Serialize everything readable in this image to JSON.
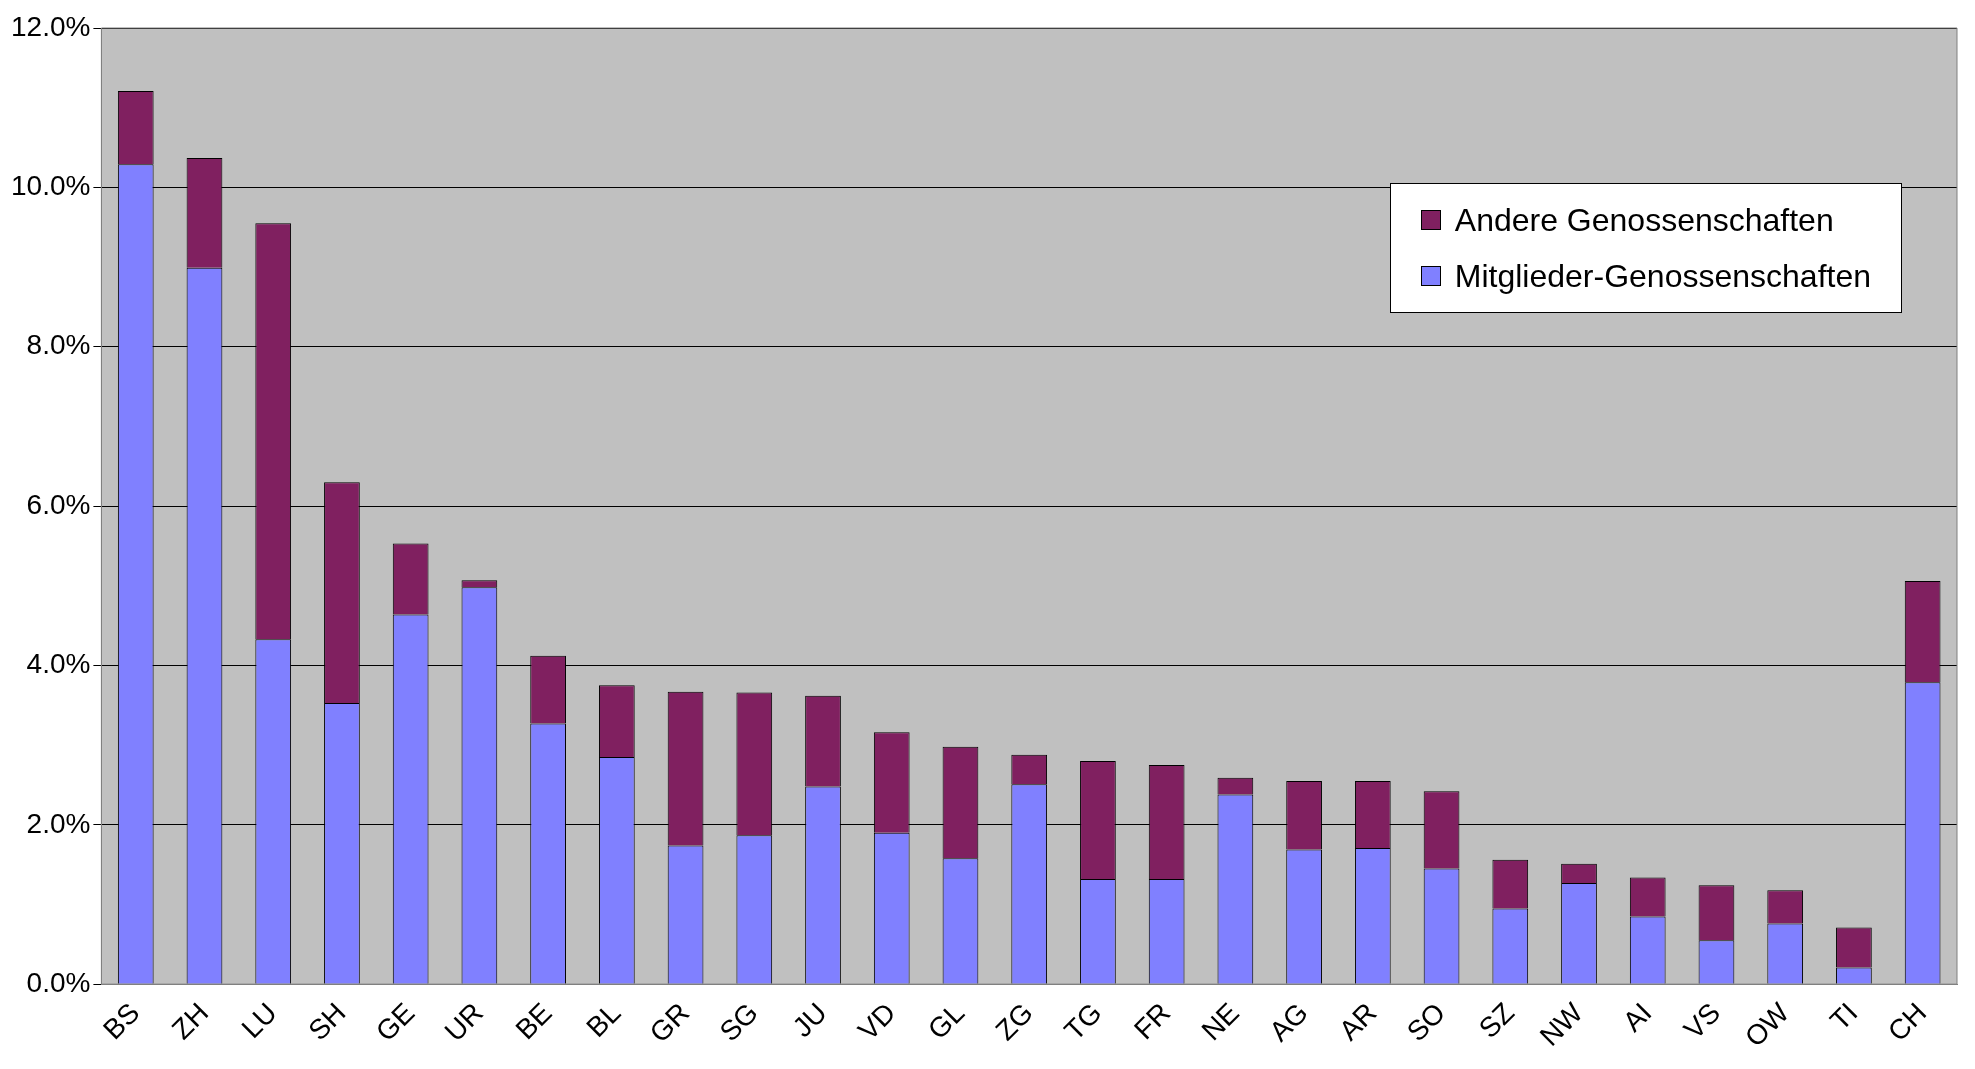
{
  "chart_data": {
    "type": "bar",
    "stacked": true,
    "grid": "y",
    "legend": "top right",
    "categories": [
      "BS",
      "ZH",
      "LU",
      "SH",
      "GE",
      "UR",
      "BE",
      "BL",
      "GR",
      "SG",
      "JU",
      "VD",
      "GL",
      "ZG",
      "TG",
      "FR",
      "NE",
      "AG",
      "AR",
      "SO",
      "SZ",
      "NW",
      "AI",
      "VS",
      "OW",
      "TI",
      "CH"
    ],
    "ylim": [
      0,
      12
    ],
    "yticks": [
      {
        "value": 0,
        "label": "0.0%"
      },
      {
        "value": 2,
        "label": "2.0%"
      },
      {
        "value": 4,
        "label": "4.0%"
      },
      {
        "value": 6,
        "label": "6.0%"
      },
      {
        "value": 8,
        "label": "8.0%"
      },
      {
        "value": 10,
        "label": "10.0%"
      },
      {
        "value": 12,
        "label": "12.0%"
      }
    ],
    "series": [
      {
        "name": "Mitglieder-Genossenschaften",
        "color": "#8080ff",
        "values": [
          10.29,
          8.99,
          4.33,
          3.53,
          4.64,
          4.98,
          3.27,
          2.85,
          1.74,
          1.87,
          2.48,
          1.9,
          1.58,
          2.51,
          1.32,
          1.32,
          2.38,
          1.69,
          1.71,
          1.45,
          0.95,
          1.27,
          0.85,
          0.55,
          0.76,
          0.21,
          3.79
        ]
      },
      {
        "name": "Andere Genossenschaften",
        "color": "#802060",
        "values": [
          0.92,
          1.38,
          5.22,
          2.77,
          0.89,
          0.09,
          0.85,
          0.9,
          1.93,
          1.79,
          1.14,
          1.26,
          1.4,
          0.37,
          1.48,
          1.43,
          0.21,
          0.86,
          0.84,
          0.97,
          0.61,
          0.24,
          0.49,
          0.69,
          0.42,
          0.5,
          1.27
        ]
      }
    ]
  }
}
